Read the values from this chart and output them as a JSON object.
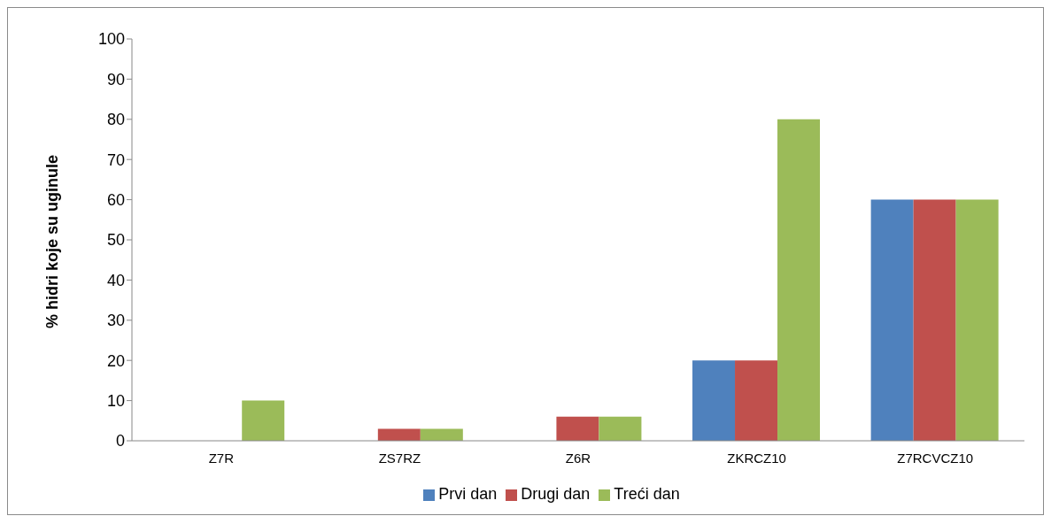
{
  "chart_data": {
    "type": "bar",
    "ylabel": "%  hidri koje su uginule",
    "categories": [
      "Z7R",
      "ZS7RZ",
      "Z6R",
      "ZKRCZ10",
      "Z7RCVCZ10"
    ],
    "series": [
      {
        "name": "Prvi dan",
        "color": "#4f81bd",
        "values": [
          0,
          0,
          0,
          20,
          60
        ]
      },
      {
        "name": "Drugi dan",
        "color": "#c0504d",
        "values": [
          0,
          3,
          6,
          20,
          60
        ]
      },
      {
        "name": "Treći dan",
        "color": "#9bbb59",
        "values": [
          10,
          3,
          6,
          80,
          60
        ]
      }
    ],
    "ylim": [
      0,
      100
    ],
    "yticks": [
      0,
      10,
      20,
      30,
      40,
      50,
      60,
      70,
      80,
      90,
      100
    ],
    "grid": false,
    "legend": "bottom"
  }
}
